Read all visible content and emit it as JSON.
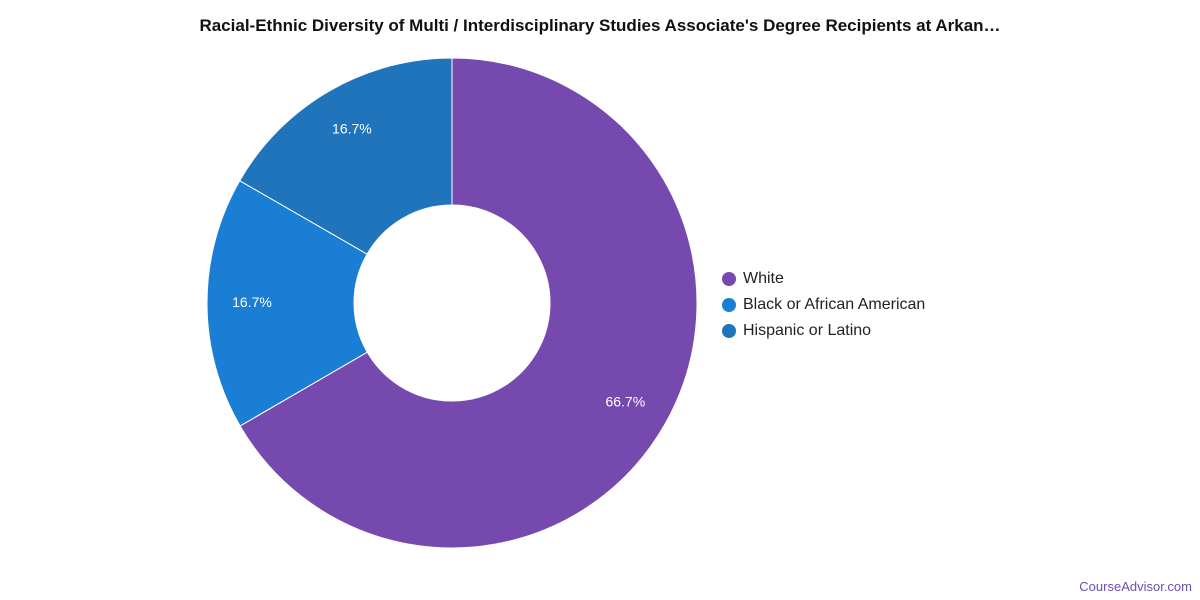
{
  "chart_data": {
    "type": "pie",
    "variant": "donut",
    "title": "Racial-Ethnic Diversity of Multi / Interdisciplinary Studies Associate's Degree Recipients at Arkan…",
    "categories": [
      "White",
      "Black or African American",
      "Hispanic or Latino"
    ],
    "values": [
      66.7,
      16.7,
      16.7
    ],
    "labels": [
      "66.7%",
      "16.7%",
      "16.7%"
    ],
    "colors": [
      "#7649ae",
      "#1a7fd4",
      "#1f74bb"
    ],
    "legend": "right"
  },
  "watermark": "CourseAdvisor.com"
}
